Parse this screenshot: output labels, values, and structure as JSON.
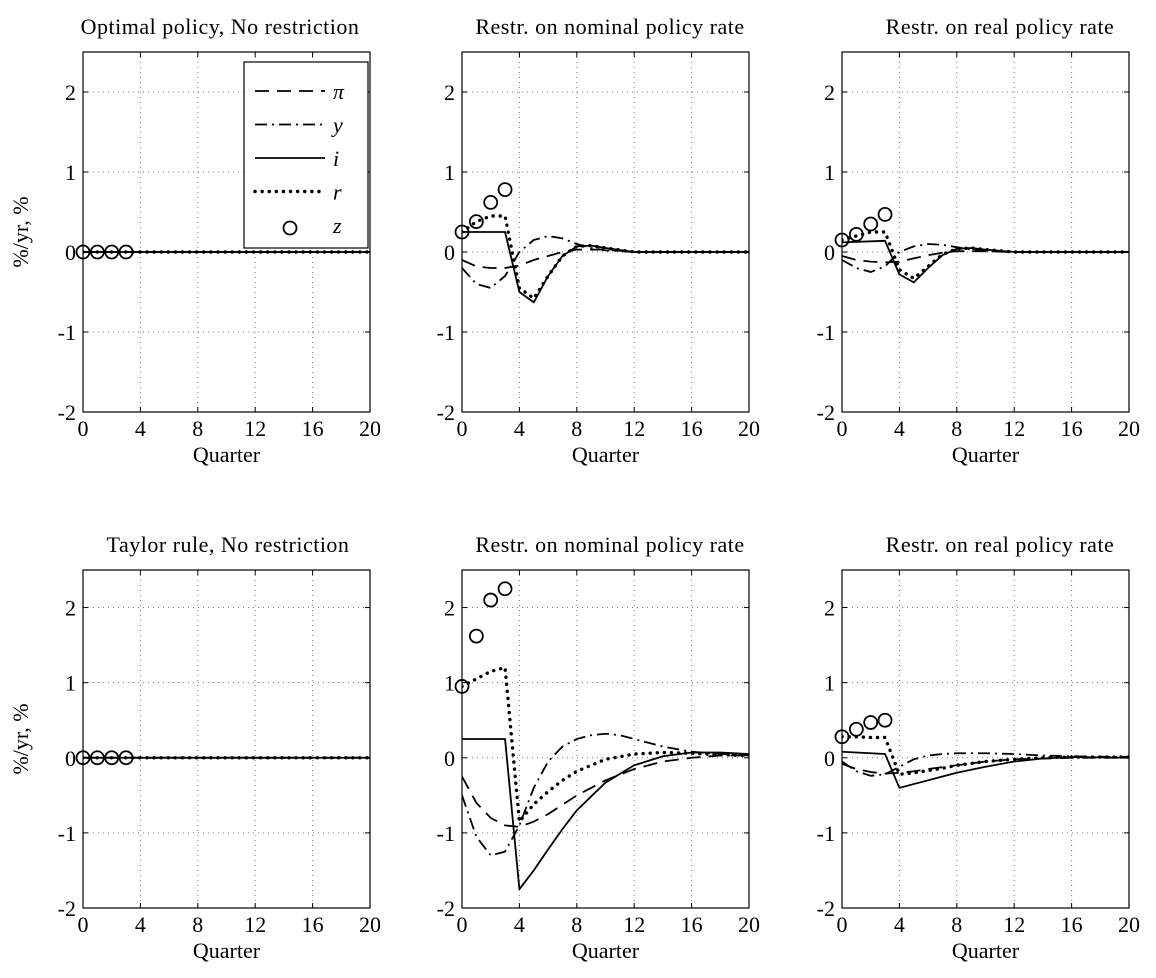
{
  "chart_data": [
    {
      "type": "line",
      "title": "Optimal policy, No restriction",
      "xlabel": "Quarter",
      "ylabel": "%/yr, %",
      "xlim": [
        0,
        20
      ],
      "ylim": [
        -2,
        2.5
      ],
      "xticks": [
        "0",
        "4",
        "8",
        "12",
        "16",
        "20"
      ],
      "yticks": [
        "-2",
        "-1",
        "0",
        "1",
        "2"
      ],
      "grid": true,
      "legend": "top-right",
      "series": [
        {
          "name": "π",
          "style": "dashed",
          "x": [
            0,
            20
          ],
          "values": [
            0,
            0
          ]
        },
        {
          "name": "y",
          "style": "dashdot",
          "x": [
            0,
            20
          ],
          "values": [
            0,
            0
          ]
        },
        {
          "name": "i",
          "style": "solid",
          "x": [
            0,
            20
          ],
          "values": [
            0,
            0
          ]
        },
        {
          "name": "r",
          "style": "dotted",
          "x": [
            0,
            20
          ],
          "values": [
            0,
            0
          ]
        },
        {
          "name": "z",
          "style": "markers",
          "x": [
            0,
            1,
            2,
            3
          ],
          "values": [
            0,
            0,
            0,
            0
          ]
        }
      ]
    },
    {
      "type": "line",
      "title": "Restr. on nominal policy rate",
      "xlabel": "Quarter",
      "ylabel": "",
      "xlim": [
        0,
        20
      ],
      "ylim": [
        -2,
        2.5
      ],
      "xticks": [
        "0",
        "4",
        "8",
        "12",
        "16",
        "20"
      ],
      "yticks": [
        "-2",
        "-1",
        "0",
        "1",
        "2"
      ],
      "grid": true,
      "series": [
        {
          "name": "π",
          "style": "dashed",
          "x": [
            0,
            1,
            2,
            3,
            4,
            5,
            6,
            7,
            8,
            10,
            12,
            20
          ],
          "values": [
            -0.1,
            -0.18,
            -0.2,
            -0.2,
            -0.17,
            -0.1,
            -0.05,
            0.0,
            0.03,
            0.03,
            0.0,
            0.0
          ]
        },
        {
          "name": "y",
          "style": "dashdot",
          "x": [
            0,
            1,
            2,
            3,
            4,
            5,
            6,
            7,
            8,
            9,
            10,
            12,
            20
          ],
          "values": [
            -0.2,
            -0.4,
            -0.45,
            -0.3,
            0.0,
            0.15,
            0.2,
            0.17,
            0.1,
            0.05,
            0.02,
            0.0,
            0.0
          ]
        },
        {
          "name": "i",
          "style": "solid",
          "x": [
            0,
            3,
            4,
            5,
            6,
            7,
            8,
            9,
            10,
            12,
            20
          ],
          "values": [
            0.25,
            0.25,
            -0.5,
            -0.63,
            -0.3,
            -0.05,
            0.07,
            0.08,
            0.05,
            0.0,
            0.0
          ]
        },
        {
          "name": "r",
          "style": "dotted",
          "x": [
            0,
            1,
            2,
            3,
            4,
            5,
            6,
            7,
            8,
            9,
            10,
            12,
            20
          ],
          "values": [
            0.25,
            0.38,
            0.45,
            0.45,
            -0.45,
            -0.58,
            -0.3,
            -0.05,
            0.07,
            0.08,
            0.05,
            0.0,
            0.0
          ]
        },
        {
          "name": "z",
          "style": "markers",
          "x": [
            0,
            1,
            2,
            3
          ],
          "values": [
            0.25,
            0.38,
            0.62,
            0.78
          ]
        }
      ]
    },
    {
      "type": "line",
      "title": "Restr. on real policy rate",
      "xlabel": "Quarter",
      "ylabel": "",
      "xlim": [
        0,
        20
      ],
      "ylim": [
        -2,
        2.5
      ],
      "xticks": [
        "0",
        "4",
        "8",
        "12",
        "16",
        "20"
      ],
      "yticks": [
        "-2",
        "-1",
        "0",
        "1",
        "2"
      ],
      "grid": true,
      "series": [
        {
          "name": "π",
          "style": "dashed",
          "x": [
            0,
            1,
            2,
            3,
            4,
            5,
            6,
            7,
            8,
            10,
            12,
            20
          ],
          "values": [
            -0.05,
            -0.1,
            -0.12,
            -0.13,
            -0.12,
            -0.08,
            -0.04,
            -0.01,
            0.01,
            0.01,
            0.0,
            0.0
          ]
        },
        {
          "name": "y",
          "style": "dashdot",
          "x": [
            0,
            1,
            2,
            3,
            4,
            5,
            6,
            7,
            8,
            9,
            10,
            12,
            20
          ],
          "values": [
            -0.1,
            -0.2,
            -0.25,
            -0.18,
            0.0,
            0.07,
            0.1,
            0.09,
            0.06,
            0.03,
            0.01,
            0.0,
            0.0
          ]
        },
        {
          "name": "i",
          "style": "solid",
          "x": [
            0,
            3,
            4,
            5,
            6,
            7,
            8,
            9,
            10,
            12,
            20
          ],
          "values": [
            0.12,
            0.14,
            -0.28,
            -0.38,
            -0.2,
            -0.04,
            0.04,
            0.05,
            0.03,
            0.0,
            0.0
          ]
        },
        {
          "name": "r",
          "style": "dotted",
          "x": [
            0,
            1,
            2,
            3,
            4,
            5,
            6,
            7,
            8,
            9,
            10,
            12,
            20
          ],
          "values": [
            0.15,
            0.2,
            0.25,
            0.25,
            -0.22,
            -0.33,
            -0.18,
            -0.03,
            0.04,
            0.05,
            0.03,
            0.0,
            0.0
          ]
        },
        {
          "name": "z",
          "style": "markers",
          "x": [
            0,
            1,
            2,
            3
          ],
          "values": [
            0.15,
            0.22,
            0.35,
            0.47
          ]
        }
      ]
    },
    {
      "type": "line",
      "title": "Taylor rule, No restriction",
      "xlabel": "Quarter",
      "ylabel": "%/yr, %",
      "xlim": [
        0,
        20
      ],
      "ylim": [
        -2,
        2.5
      ],
      "xticks": [
        "0",
        "4",
        "8",
        "12",
        "16",
        "20"
      ],
      "yticks": [
        "-2",
        "-1",
        "0",
        "1",
        "2"
      ],
      "grid": true,
      "series": [
        {
          "name": "π",
          "style": "dashed",
          "x": [
            0,
            20
          ],
          "values": [
            0,
            0
          ]
        },
        {
          "name": "y",
          "style": "dashdot",
          "x": [
            0,
            20
          ],
          "values": [
            0,
            0
          ]
        },
        {
          "name": "i",
          "style": "solid",
          "x": [
            0,
            20
          ],
          "values": [
            0,
            0
          ]
        },
        {
          "name": "r",
          "style": "dotted",
          "x": [
            0,
            20
          ],
          "values": [
            0,
            0
          ]
        },
        {
          "name": "z",
          "style": "markers",
          "x": [
            0,
            1,
            2,
            3
          ],
          "values": [
            0,
            0,
            0,
            0
          ]
        }
      ]
    },
    {
      "type": "line",
      "title": "Restr. on nominal policy rate",
      "xlabel": "Quarter",
      "ylabel": "",
      "xlim": [
        0,
        20
      ],
      "ylim": [
        -2,
        2.5
      ],
      "xticks": [
        "0",
        "4",
        "8",
        "12",
        "16",
        "20"
      ],
      "yticks": [
        "-2",
        "-1",
        "0",
        "1",
        "2"
      ],
      "grid": true,
      "series": [
        {
          "name": "π",
          "style": "dashed",
          "x": [
            0,
            1,
            2,
            3,
            4,
            5,
            6,
            8,
            10,
            12,
            14,
            16,
            18,
            20
          ],
          "values": [
            -0.25,
            -0.6,
            -0.8,
            -0.9,
            -0.92,
            -0.85,
            -0.75,
            -0.5,
            -0.3,
            -0.15,
            -0.05,
            0.0,
            0.03,
            0.03
          ]
        },
        {
          "name": "y",
          "style": "dashdot",
          "x": [
            0,
            1,
            2,
            3,
            4,
            5,
            6,
            7,
            8,
            9,
            10,
            11,
            12,
            14,
            16,
            18,
            20
          ],
          "values": [
            -0.5,
            -1.05,
            -1.3,
            -1.25,
            -0.9,
            -0.4,
            -0.05,
            0.15,
            0.25,
            0.3,
            0.32,
            0.3,
            0.25,
            0.15,
            0.08,
            0.05,
            0.03
          ]
        },
        {
          "name": "i",
          "style": "solid",
          "x": [
            0,
            3,
            4,
            5,
            6,
            7,
            8,
            10,
            12,
            14,
            16,
            18,
            20
          ],
          "values": [
            0.25,
            0.25,
            -1.75,
            -1.5,
            -1.22,
            -0.95,
            -0.7,
            -0.33,
            -0.1,
            0.02,
            0.07,
            0.07,
            0.05
          ]
        },
        {
          "name": "r",
          "style": "dotted",
          "x": [
            0,
            1,
            2,
            3,
            4,
            5,
            6,
            7,
            8,
            10,
            12,
            14,
            16,
            18,
            20
          ],
          "values": [
            0.95,
            1.05,
            1.15,
            1.2,
            -0.85,
            -0.62,
            -0.45,
            -0.3,
            -0.18,
            -0.02,
            0.05,
            0.07,
            0.06,
            0.04,
            0.03
          ]
        },
        {
          "name": "z",
          "style": "markers",
          "x": [
            0,
            1,
            2,
            3
          ],
          "values": [
            0.95,
            1.62,
            2.1,
            2.25
          ]
        }
      ]
    },
    {
      "type": "line",
      "title": "Restr. on real policy rate",
      "xlabel": "Quarter",
      "ylabel": "",
      "xlim": [
        0,
        20
      ],
      "ylim": [
        -2,
        2.5
      ],
      "xticks": [
        "0",
        "4",
        "8",
        "12",
        "16",
        "20"
      ],
      "yticks": [
        "-2",
        "-1",
        "0",
        "1",
        "2"
      ],
      "grid": true,
      "series": [
        {
          "name": "π",
          "style": "dashed",
          "x": [
            0,
            1,
            2,
            3,
            4,
            5,
            6,
            8,
            10,
            12,
            16,
            20
          ],
          "values": [
            -0.08,
            -0.15,
            -0.19,
            -0.21,
            -0.2,
            -0.18,
            -0.15,
            -0.1,
            -0.05,
            -0.02,
            0.0,
            0.0
          ]
        },
        {
          "name": "y",
          "style": "dashdot",
          "x": [
            0,
            1,
            2,
            3,
            4,
            5,
            6,
            7,
            8,
            10,
            12,
            14,
            16,
            20
          ],
          "values": [
            -0.05,
            -0.18,
            -0.24,
            -0.22,
            -0.12,
            -0.02,
            0.03,
            0.05,
            0.06,
            0.06,
            0.05,
            0.03,
            0.02,
            0.01
          ]
        },
        {
          "name": "i",
          "style": "solid",
          "x": [
            0,
            3,
            4,
            5,
            6,
            7,
            8,
            10,
            12,
            14,
            16,
            20
          ],
          "values": [
            0.08,
            0.05,
            -0.4,
            -0.35,
            -0.3,
            -0.25,
            -0.2,
            -0.12,
            -0.05,
            -0.01,
            0.01,
            0.0
          ]
        },
        {
          "name": "r",
          "style": "dotted",
          "x": [
            0,
            1,
            2,
            3,
            4,
            5,
            6,
            7,
            8,
            10,
            12,
            14,
            16,
            20
          ],
          "values": [
            0.28,
            0.28,
            0.27,
            0.27,
            -0.22,
            -0.2,
            -0.17,
            -0.14,
            -0.1,
            -0.05,
            -0.02,
            0.0,
            0.01,
            0.01
          ]
        },
        {
          "name": "z",
          "style": "markers",
          "x": [
            0,
            1,
            2,
            3
          ],
          "values": [
            0.28,
            0.38,
            0.47,
            0.5
          ]
        }
      ]
    }
  ]
}
